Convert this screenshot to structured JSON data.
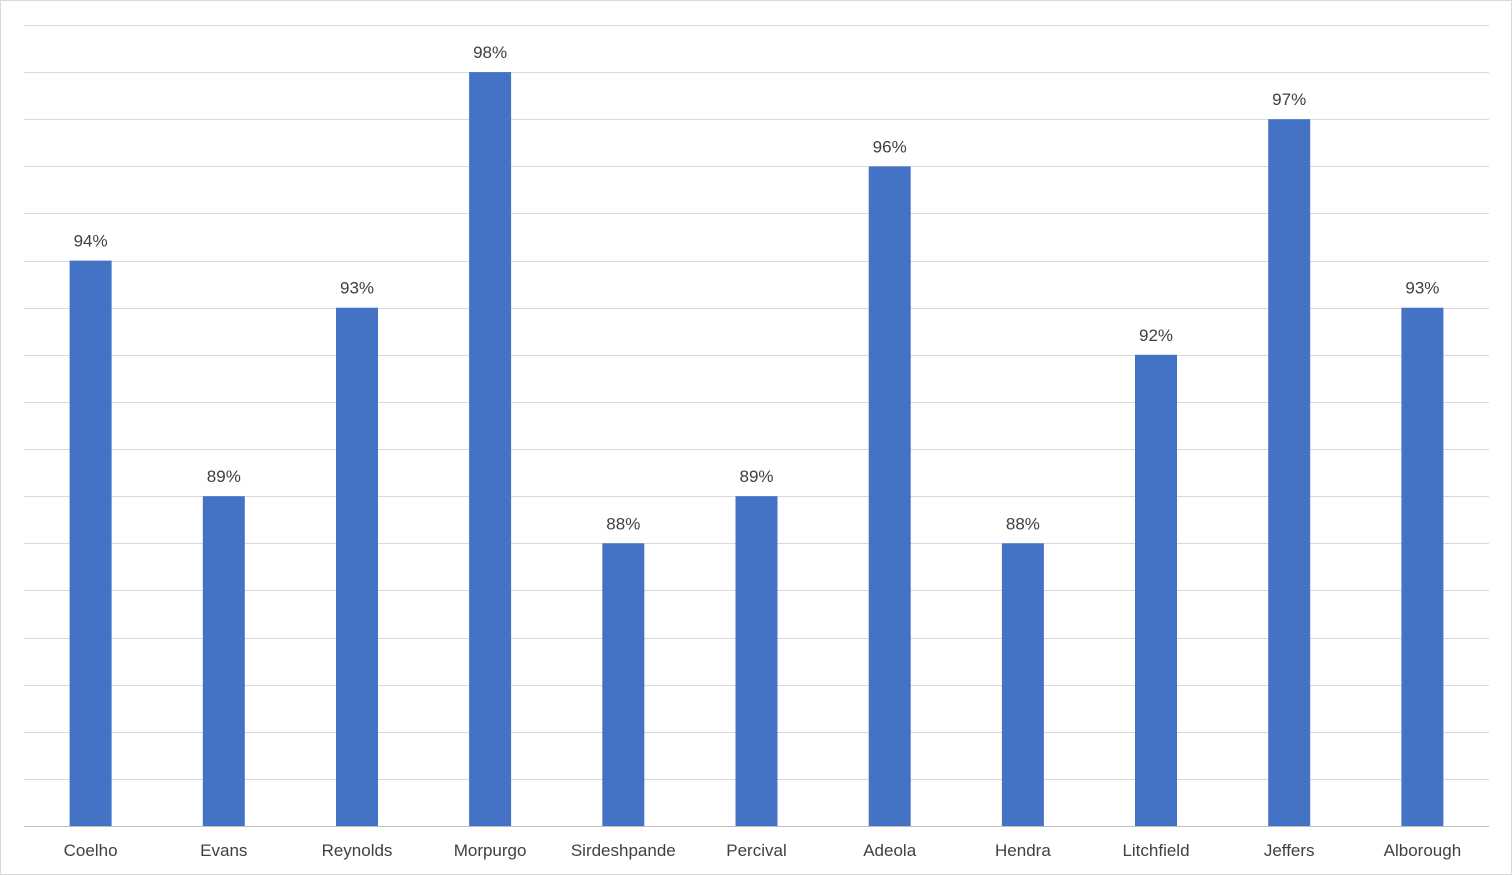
{
  "chart_data": {
    "type": "bar",
    "categories": [
      "Coelho",
      "Evans",
      "Reynolds",
      "Morpurgo",
      "Sirdeshpande",
      "Percival",
      "Adeola",
      "Hendra",
      "Litchfield",
      "Jeffers",
      "Alborough"
    ],
    "values": [
      94,
      89,
      93,
      98,
      88,
      89,
      96,
      88,
      92,
      97,
      93
    ],
    "data_labels": [
      "94%",
      "89%",
      "93%",
      "98%",
      "88%",
      "89%",
      "96%",
      "88%",
      "92%",
      "97%",
      "93%"
    ],
    "ylim": [
      82,
      99
    ],
    "y_gridlines": [
      83,
      84,
      85,
      86,
      87,
      88,
      89,
      90,
      91,
      92,
      93,
      94,
      95,
      96,
      97,
      98,
      99
    ],
    "grid": "horizontal",
    "legend": "none",
    "bar_color": "#4472c4"
  }
}
